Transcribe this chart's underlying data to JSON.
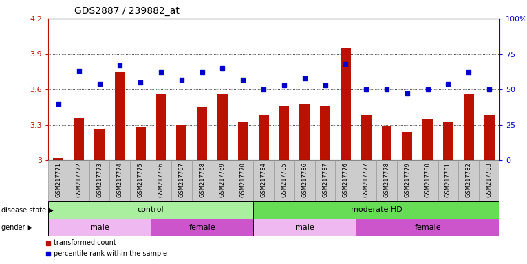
{
  "title": "GDS2887 / 239882_at",
  "samples": [
    "GSM217771",
    "GSM217772",
    "GSM217773",
    "GSM217774",
    "GSM217775",
    "GSM217766",
    "GSM217767",
    "GSM217768",
    "GSM217769",
    "GSM217770",
    "GSM217784",
    "GSM217785",
    "GSM217786",
    "GSM217787",
    "GSM217776",
    "GSM217777",
    "GSM217778",
    "GSM217779",
    "GSM217780",
    "GSM217781",
    "GSM217782",
    "GSM217783"
  ],
  "bar_values": [
    3.02,
    3.36,
    3.26,
    3.75,
    3.28,
    3.56,
    3.3,
    3.45,
    3.56,
    3.32,
    3.38,
    3.46,
    3.47,
    3.46,
    3.95,
    3.38,
    3.29,
    3.24,
    3.35,
    3.32,
    3.56,
    3.38
  ],
  "percentile_values": [
    40,
    63,
    54,
    67,
    55,
    62,
    57,
    62,
    65,
    57,
    50,
    53,
    58,
    53,
    68,
    50,
    50,
    47,
    50,
    54,
    62,
    50
  ],
  "bar_baseline": 3.0,
  "ylim_left": [
    3.0,
    4.2
  ],
  "ylim_right": [
    0,
    100
  ],
  "yticks_left": [
    3.0,
    3.3,
    3.6,
    3.9,
    4.2
  ],
  "yticks_right": [
    0,
    25,
    50,
    75,
    100
  ],
  "ytick_labels_left": [
    "3",
    "3.3",
    "3.6",
    "3.9",
    "4.2"
  ],
  "ytick_labels_right": [
    "0",
    "25",
    "50",
    "75",
    "100%"
  ],
  "bar_color": "#bb1100",
  "marker_color": "#0000cc",
  "grid_color": "#000000",
  "label_bg_color": "#cccccc",
  "label_edge_color": "#999999",
  "disease_state_groups": [
    {
      "label": "control",
      "start": 0,
      "end": 10,
      "color": "#aaeea0"
    },
    {
      "label": "moderate HD",
      "start": 10,
      "end": 22,
      "color": "#66dd55"
    }
  ],
  "gender_groups": [
    {
      "label": "male",
      "start": 0,
      "end": 5,
      "color": "#f0b8f0"
    },
    {
      "label": "female",
      "start": 5,
      "end": 10,
      "color": "#cc55cc"
    },
    {
      "label": "male",
      "start": 10,
      "end": 15,
      "color": "#f0b8f0"
    },
    {
      "label": "female",
      "start": 15,
      "end": 22,
      "color": "#cc55cc"
    }
  ]
}
